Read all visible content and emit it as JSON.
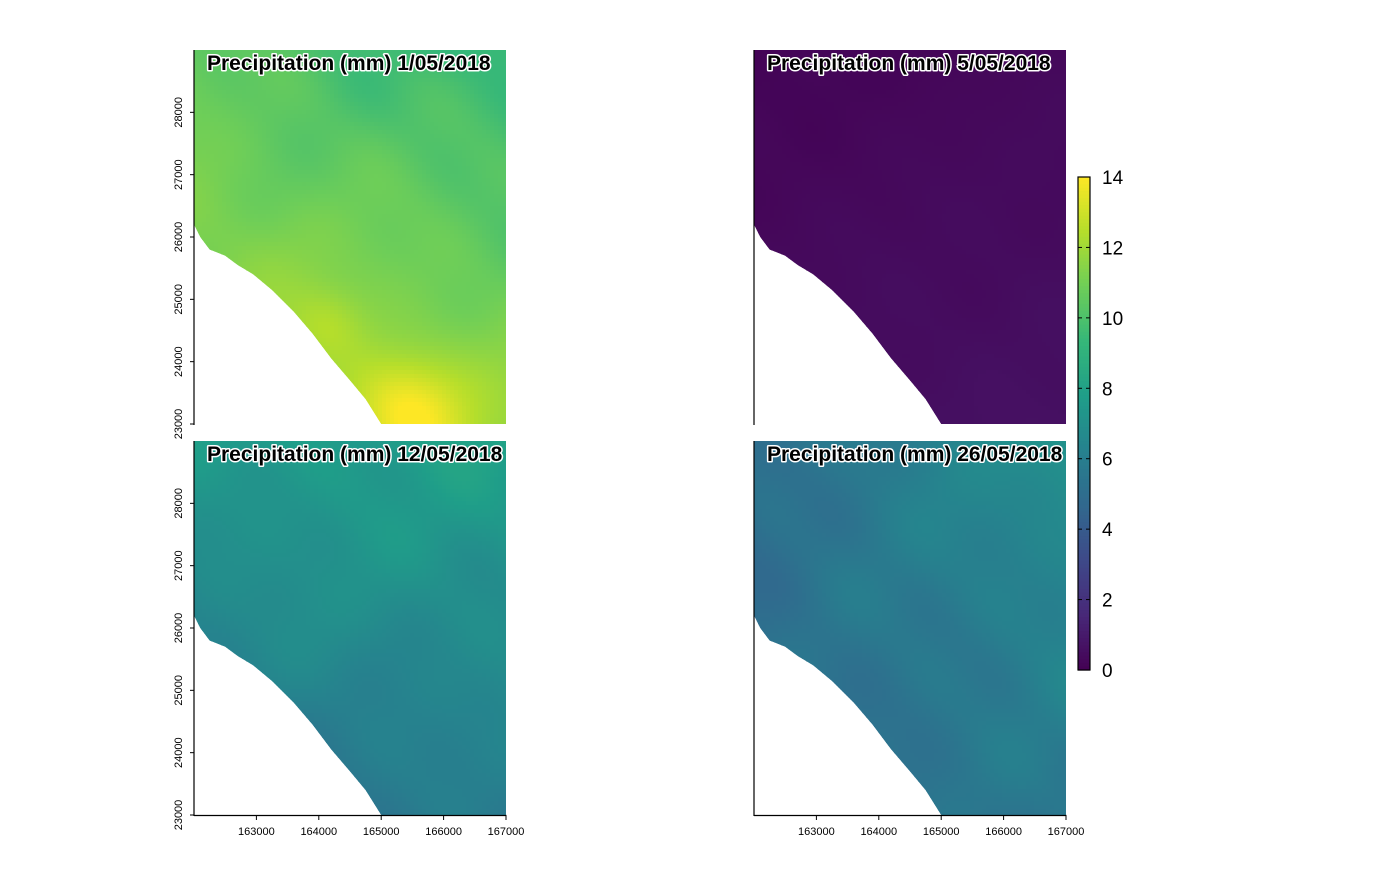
{
  "chart_data": [
    {
      "type": "heatmap",
      "title": "Precipitation (mm) 1/05/2018",
      "x_range": [
        162000,
        167000
      ],
      "y_range": [
        23000,
        29000
      ],
      "x_ticks": [],
      "y_ticks": [
        "23000",
        "24000",
        "25000",
        "26000",
        "27000",
        "28000"
      ],
      "base_value": 11.3,
      "corner_values": {
        "top_left": 10.5,
        "top_right": 9.2,
        "bottom_left": 12.3,
        "bottom_right": 11.8
      },
      "peak": {
        "x": 165400,
        "y": 23200,
        "value": 14
      },
      "secondary_peak": {
        "x": 164100,
        "y": 24600,
        "value": 12.8
      },
      "shows_y_axis": true,
      "shows_x_axis": false
    },
    {
      "type": "heatmap",
      "title": "Precipitation (mm) 5/05/2018",
      "x_range": [
        162000,
        167000
      ],
      "y_range": [
        23000,
        29000
      ],
      "x_ticks": [],
      "y_ticks": [],
      "base_value": 0.4,
      "corner_values": {
        "top_left": 0.1,
        "top_right": 0.3,
        "bottom_left": 0.5,
        "bottom_right": 0.6
      },
      "peak": null,
      "secondary_peak": null,
      "shows_y_axis": false,
      "shows_x_axis": false
    },
    {
      "type": "heatmap",
      "title": "Precipitation (mm) 12/05/2018",
      "x_range": [
        162000,
        167000
      ],
      "y_range": [
        23000,
        29000
      ],
      "x_ticks": [
        "163000",
        "164000",
        "165000",
        "166000",
        "167000"
      ],
      "y_ticks": [
        "23000",
        "24000",
        "25000",
        "26000",
        "27000",
        "28000"
      ],
      "base_value": 6.2,
      "corner_values": {
        "top_left": 7.6,
        "top_right": 7.9,
        "bottom_left": 5.4,
        "bottom_right": 5.8
      },
      "peak": null,
      "secondary_peak": null,
      "shows_y_axis": true,
      "shows_x_axis": true
    },
    {
      "type": "heatmap",
      "title": "Precipitation (mm) 26/05/2018",
      "x_range": [
        162000,
        167000
      ],
      "y_range": [
        23000,
        29000
      ],
      "x_ticks": [
        "163000",
        "164000",
        "165000",
        "166000",
        "167000"
      ],
      "y_ticks": [],
      "base_value": 5.6,
      "corner_values": {
        "top_left": 5.2,
        "top_right": 7.0,
        "bottom_left": 4.9,
        "bottom_right": 5.6
      },
      "peak": null,
      "secondary_peak": null,
      "shows_y_axis": false,
      "shows_x_axis": true
    }
  ],
  "legend": {
    "placement": "right",
    "min": 0,
    "max": 14,
    "ticks": [
      "0",
      "2",
      "4",
      "6",
      "8",
      "10",
      "12",
      "14"
    ],
    "colormap": "viridis"
  },
  "colormap_stops": [
    "#440154",
    "#482878",
    "#3e4989",
    "#31688e",
    "#26828e",
    "#1f9e89",
    "#35b779",
    "#6ece58",
    "#b5de2b",
    "#fde725"
  ],
  "coastline": [
    [
      162000,
      26200
    ],
    [
      162100,
      26000
    ],
    [
      162250,
      25800
    ],
    [
      162500,
      25700
    ],
    [
      162700,
      25550
    ],
    [
      162950,
      25400
    ],
    [
      163250,
      25150
    ],
    [
      163600,
      24800
    ],
    [
      163900,
      24450
    ],
    [
      164200,
      24050
    ],
    [
      164500,
      23700
    ],
    [
      164750,
      23400
    ],
    [
      165000,
      23000
    ]
  ]
}
